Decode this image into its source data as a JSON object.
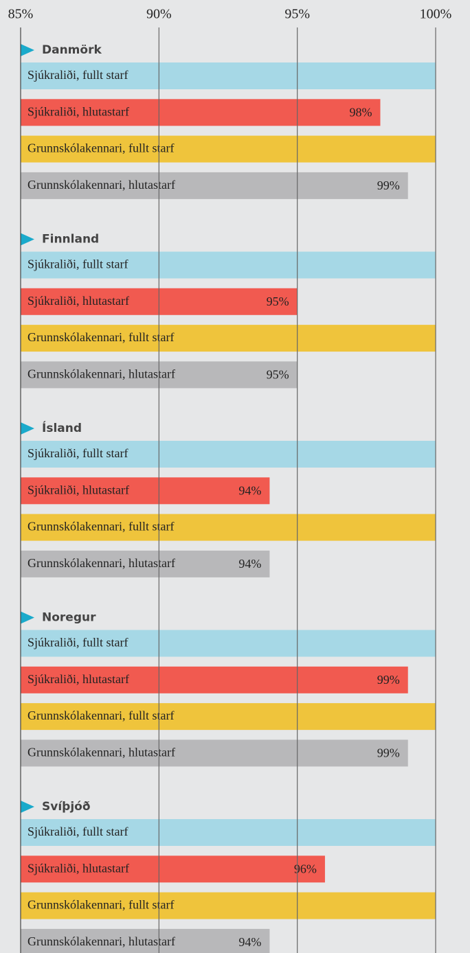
{
  "chart_data": {
    "type": "bar",
    "orientation": "horizontal",
    "xlim": [
      85,
      100
    ],
    "xticks": [
      {
        "value": 85,
        "label": "85%"
      },
      {
        "value": 90,
        "label": "90%"
      },
      {
        "value": 95,
        "label": "95%"
      },
      {
        "value": 100,
        "label": "100%"
      }
    ],
    "grid": true,
    "colors": [
      "#a6d8e6",
      "#f15a50",
      "#efc43c",
      "#b8b8ba"
    ],
    "groups": [
      {
        "name": "Danmörk",
        "categories": [
          "Sjúkraliði, fullt starf",
          "Sjúkraliði, hlutastarf",
          "Grunnskólakennari, fullt starf",
          "Grunnskólakennari, hlutastarf"
        ],
        "values": [
          100,
          98,
          100,
          99
        ],
        "value_labels": [
          null,
          "98%",
          null,
          "99%"
        ]
      },
      {
        "name": "Finnland",
        "categories": [
          "Sjúkraliði, fullt starf",
          "Sjúkraliði, hlutastarf",
          "Grunnskólakennari, fullt starf",
          "Grunnskólakennari, hlutastarf"
        ],
        "values": [
          100,
          95,
          100,
          95
        ],
        "value_labels": [
          null,
          "95%",
          null,
          "95%"
        ]
      },
      {
        "name": "Ísland",
        "categories": [
          "Sjúkraliði, fullt starf",
          "Sjúkraliði, hlutastarf",
          "Grunnskólakennari, fullt starf",
          "Grunnskólakennari, hlutastarf"
        ],
        "values": [
          100,
          94,
          100,
          94
        ],
        "value_labels": [
          null,
          "94%",
          null,
          "94%"
        ]
      },
      {
        "name": "Noregur",
        "categories": [
          "Sjúkraliði, fullt starf",
          "Sjúkraliði, hlutastarf",
          "Grunnskólakennari, fullt starf",
          "Grunnskólakennari, hlutastarf"
        ],
        "values": [
          100,
          99,
          100,
          99
        ],
        "value_labels": [
          null,
          "99%",
          null,
          "99%"
        ]
      },
      {
        "name": "Svíþjóð",
        "categories": [
          "Sjúkraliði, fullt starf",
          "Sjúkraliði, hlutastarf",
          "Grunnskólakennari, fullt starf",
          "Grunnskólakennari, hlutastarf"
        ],
        "values": [
          100,
          96,
          100,
          94
        ],
        "value_labels": [
          null,
          "96%",
          null,
          "94%"
        ]
      }
    ]
  }
}
